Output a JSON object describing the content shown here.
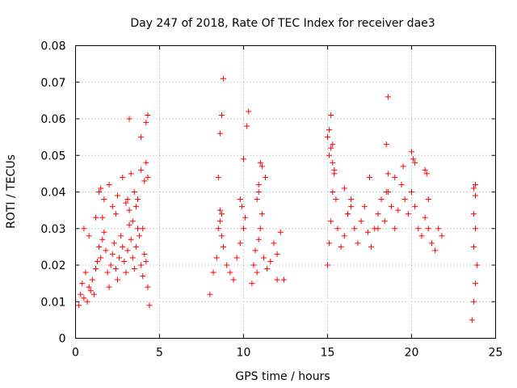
{
  "chart_data": {
    "type": "scatter",
    "title": "Day 247 of 2018, Rate Of TEC Index for receiver dae3",
    "xlabel": "GPS time / hours",
    "ylabel": "ROTI / TECUs",
    "xlim": [
      0,
      25
    ],
    "ylim": [
      0,
      0.08
    ],
    "xticks": [
      0,
      5,
      10,
      15,
      20,
      25
    ],
    "yticks": [
      0,
      0.01,
      0.02,
      0.03,
      0.04,
      0.05,
      0.06,
      0.07,
      0.08
    ],
    "xtick_labels": [
      "0",
      "5",
      "10",
      "15",
      "20",
      "25"
    ],
    "ytick_labels": [
      "0",
      "0.01",
      "0.02",
      "0.03",
      "0.04",
      "0.05",
      "0.06",
      "0.07",
      "0.08"
    ],
    "grid": true,
    "marker": "+",
    "color": "#ff0000",
    "series": [
      {
        "name": "ROTI",
        "x": [
          0.2,
          0.3,
          0.4,
          0.5,
          0.6,
          0.7,
          0.8,
          0.9,
          1.0,
          1.1,
          1.2,
          1.3,
          1.4,
          1.5,
          1.6,
          1.7,
          1.8,
          1.9,
          2.0,
          2.1,
          2.2,
          2.3,
          2.4,
          2.5,
          2.6,
          2.7,
          2.8,
          2.9,
          3.0,
          3.1,
          3.2,
          3.3,
          3.4,
          3.5,
          3.6,
          3.7,
          3.8,
          3.9,
          4.0,
          4.1,
          4.2,
          4.3,
          4.4,
          0.5,
          0.8,
          1.2,
          1.5,
          1.7,
          2.0,
          2.2,
          2.5,
          2.8,
          3.0,
          3.2,
          3.3,
          3.5,
          3.7,
          3.9,
          4.1,
          4.2,
          4.3,
          1.4,
          1.6,
          2.4,
          3.1,
          3.4,
          3.6,
          4.0,
          3.9,
          4.2,
          4.3,
          3.2,
          8.0,
          8.2,
          8.4,
          8.5,
          8.6,
          8.7,
          8.8,
          9.0,
          9.2,
          9.4,
          9.6,
          9.8,
          10.0,
          8.5,
          8.6,
          8.7,
          9.9,
          10.0,
          10.1,
          9.8,
          8.8,
          8.6,
          8.7,
          10.2,
          10.3,
          10.5,
          10.6,
          10.7,
          10.8,
          10.9,
          11.0,
          11.1,
          11.2,
          11.4,
          11.6,
          11.8,
          12.0,
          12.2,
          12.4,
          10.9,
          11.0,
          11.1,
          11.3,
          12.0,
          10.8,
          10.9,
          15.0,
          15.1,
          15.2,
          15.3,
          15.4,
          15.5,
          15.6,
          15.8,
          16.0,
          16.2,
          16.4,
          16.6,
          16.8,
          17.0,
          17.2,
          17.4,
          17.6,
          17.8,
          18.0,
          18.2,
          18.4,
          18.6,
          18.8,
          19.0,
          19.2,
          19.4,
          19.6,
          19.8,
          20.0,
          20.2,
          20.4,
          20.6,
          20.8,
          21.0,
          21.2,
          21.4,
          21.6,
          21.8,
          15.0,
          15.1,
          15.2,
          15.3,
          15.4,
          16.0,
          16.2,
          16.4,
          17.5,
          18.0,
          18.5,
          18.6,
          19.0,
          19.5,
          20.0,
          20.1,
          20.2,
          20.8,
          20.9,
          21.0,
          15.1,
          18.6,
          18.5,
          15.2,
          15.3,
          23.6,
          23.7,
          23.8,
          23.9,
          23.7,
          23.8,
          23.7,
          23.8,
          23.8,
          23.7
        ],
        "y": [
          0.009,
          0.012,
          0.015,
          0.011,
          0.018,
          0.01,
          0.014,
          0.013,
          0.016,
          0.012,
          0.019,
          0.021,
          0.025,
          0.022,
          0.027,
          0.029,
          0.024,
          0.018,
          0.014,
          0.02,
          0.023,
          0.026,
          0.019,
          0.016,
          0.022,
          0.028,
          0.025,
          0.021,
          0.018,
          0.024,
          0.031,
          0.027,
          0.022,
          0.019,
          0.025,
          0.03,
          0.028,
          0.02,
          0.017,
          0.023,
          0.021,
          0.014,
          0.009,
          0.03,
          0.028,
          0.033,
          0.041,
          0.038,
          0.042,
          0.036,
          0.039,
          0.044,
          0.037,
          0.035,
          0.045,
          0.04,
          0.038,
          0.046,
          0.043,
          0.048,
          0.044,
          0.04,
          0.033,
          0.034,
          0.038,
          0.032,
          0.036,
          0.03,
          0.055,
          0.059,
          0.061,
          0.06,
          0.012,
          0.018,
          0.022,
          0.03,
          0.035,
          0.028,
          0.025,
          0.02,
          0.018,
          0.016,
          0.022,
          0.026,
          0.03,
          0.044,
          0.056,
          0.061,
          0.036,
          0.049,
          0.033,
          0.038,
          0.071,
          0.032,
          0.034,
          0.058,
          0.062,
          0.015,
          0.02,
          0.024,
          0.018,
          0.027,
          0.03,
          0.034,
          0.022,
          0.019,
          0.021,
          0.026,
          0.023,
          0.029,
          0.016,
          0.042,
          0.048,
          0.047,
          0.044,
          0.016,
          0.038,
          0.04,
          0.02,
          0.026,
          0.032,
          0.04,
          0.045,
          0.038,
          0.03,
          0.025,
          0.028,
          0.034,
          0.038,
          0.03,
          0.026,
          0.032,
          0.036,
          0.029,
          0.025,
          0.03,
          0.034,
          0.038,
          0.032,
          0.04,
          0.036,
          0.03,
          0.035,
          0.042,
          0.038,
          0.034,
          0.04,
          0.036,
          0.03,
          0.028,
          0.033,
          0.03,
          0.026,
          0.024,
          0.03,
          0.028,
          0.055,
          0.057,
          0.061,
          0.053,
          0.046,
          0.041,
          0.034,
          0.036,
          0.044,
          0.03,
          0.053,
          0.066,
          0.044,
          0.047,
          0.051,
          0.049,
          0.048,
          0.046,
          0.045,
          0.038,
          0.05,
          0.045,
          0.04,
          0.052,
          0.048,
          0.005,
          0.01,
          0.015,
          0.02,
          0.025,
          0.03,
          0.034,
          0.039,
          0.042,
          0.041
        ]
      }
    ]
  }
}
